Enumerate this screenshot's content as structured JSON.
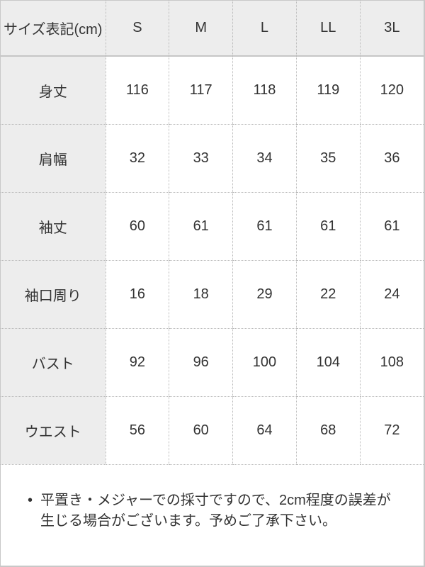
{
  "table": {
    "header": {
      "label": "サイズ表記(cm)",
      "sizes": [
        "S",
        "M",
        "L",
        "LL",
        "3L"
      ]
    },
    "rows": [
      {
        "label": "身丈",
        "values": [
          "116",
          "117",
          "118",
          "119",
          "120"
        ]
      },
      {
        "label": "肩幅",
        "values": [
          "32",
          "33",
          "34",
          "35",
          "36"
        ]
      },
      {
        "label": "袖丈",
        "values": [
          "60",
          "61",
          "61",
          "61",
          "61"
        ]
      },
      {
        "label": "袖口周り",
        "values": [
          "16",
          "18",
          "29",
          "22",
          "24"
        ]
      },
      {
        "label": "バスト",
        "values": [
          "92",
          "96",
          "100",
          "104",
          "108"
        ]
      },
      {
        "label": "ウエスト",
        "values": [
          "56",
          "60",
          "64",
          "68",
          "72"
        ]
      }
    ]
  },
  "note": {
    "bullet": "•",
    "text": "平置き・メジャーでの採寸ですので、2cm程度の誤差が生じる場合がございます。予めご了承下さい。"
  },
  "colors": {
    "header_background": "#ededed",
    "cell_background": "#ffffff",
    "solid_border": "#c6c6c6",
    "dotted_border": "#b9b9b9",
    "text": "#333333"
  }
}
